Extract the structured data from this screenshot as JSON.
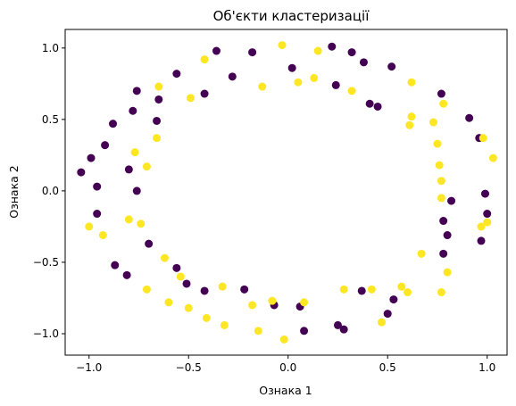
{
  "chart_data": {
    "type": "scatter",
    "title": "Об'єкти кластеризації",
    "xlabel": "Ознака 1",
    "ylabel": "Ознака 2",
    "xlim": [
      -1.12,
      1.1
    ],
    "ylim": [
      -1.15,
      1.13
    ],
    "xticks": [
      -1.0,
      -0.5,
      0.0,
      0.5,
      1.0
    ],
    "xtick_labels": [
      "−1.0",
      "−0.5",
      "0.0",
      "0.5",
      "1.0"
    ],
    "yticks": [
      -1.0,
      -0.5,
      0.0,
      0.5,
      1.0
    ],
    "ytick_labels": [
      "−1.0",
      "−0.5",
      "0.0",
      "0.5",
      "1.0"
    ],
    "grid": false,
    "colors": {
      "cluster_0": "#440154",
      "cluster_1": "#fde725"
    },
    "series": [
      {
        "color": "#440154",
        "points": [
          [
            -1.04,
            0.13
          ],
          [
            -0.99,
            0.23
          ],
          [
            -0.96,
            0.03
          ],
          [
            -0.96,
            -0.16
          ],
          [
            -0.92,
            0.32
          ],
          [
            -0.88,
            0.47
          ],
          [
            -0.81,
            -0.59
          ],
          [
            -0.87,
            -0.52
          ],
          [
            -0.78,
            0.56
          ],
          [
            -0.76,
            0.7
          ],
          [
            -0.8,
            0.15
          ],
          [
            -0.76,
            0.0
          ],
          [
            -0.7,
            -0.37
          ],
          [
            -0.66,
            0.49
          ],
          [
            -0.65,
            0.64
          ],
          [
            -0.56,
            0.82
          ],
          [
            -0.56,
            -0.54
          ],
          [
            -0.51,
            -0.65
          ],
          [
            -0.42,
            0.68
          ],
          [
            -0.42,
            -0.7
          ],
          [
            -0.36,
            0.98
          ],
          [
            -0.28,
            0.8
          ],
          [
            -0.22,
            -0.69
          ],
          [
            -0.18,
            0.97
          ],
          [
            -0.07,
            -0.8
          ],
          [
            0.02,
            0.86
          ],
          [
            0.06,
            -0.81
          ],
          [
            0.08,
            -0.98
          ],
          [
            0.22,
            1.01
          ],
          [
            0.24,
            0.74
          ],
          [
            0.25,
            -0.94
          ],
          [
            0.28,
            -0.97
          ],
          [
            0.32,
            0.97
          ],
          [
            0.37,
            -0.7
          ],
          [
            0.41,
            0.61
          ],
          [
            0.38,
            0.9
          ],
          [
            0.45,
            0.59
          ],
          [
            0.52,
            0.87
          ],
          [
            0.5,
            -0.86
          ],
          [
            0.53,
            -0.76
          ],
          [
            0.78,
            -0.44
          ],
          [
            0.8,
            -0.31
          ],
          [
            0.82,
            -0.07
          ],
          [
            0.78,
            -0.21
          ],
          [
            0.77,
            0.68
          ],
          [
            0.91,
            0.51
          ],
          [
            0.96,
            0.37
          ],
          [
            0.99,
            -0.02
          ],
          [
            1.0,
            -0.16
          ],
          [
            0.97,
            -0.35
          ]
        ]
      },
      {
        "color": "#fde725",
        "points": [
          [
            -1.0,
            -0.25
          ],
          [
            -0.93,
            -0.31
          ],
          [
            -0.8,
            -0.2
          ],
          [
            -0.77,
            0.27
          ],
          [
            -0.71,
            0.17
          ],
          [
            -0.74,
            -0.23
          ],
          [
            -0.66,
            0.37
          ],
          [
            -0.65,
            0.73
          ],
          [
            -0.71,
            -0.69
          ],
          [
            -0.62,
            -0.47
          ],
          [
            -0.6,
            -0.78
          ],
          [
            -0.54,
            -0.6
          ],
          [
            -0.5,
            -0.82
          ],
          [
            -0.49,
            0.65
          ],
          [
            -0.42,
            0.92
          ],
          [
            -0.41,
            -0.89
          ],
          [
            -0.33,
            -0.67
          ],
          [
            -0.32,
            -0.94
          ],
          [
            -0.18,
            -0.8
          ],
          [
            -0.15,
            -0.98
          ],
          [
            -0.13,
            0.73
          ],
          [
            -0.08,
            -0.77
          ],
          [
            -0.03,
            1.02
          ],
          [
            -0.02,
            -1.04
          ],
          [
            0.05,
            0.76
          ],
          [
            0.08,
            -0.78
          ],
          [
            0.13,
            0.79
          ],
          [
            0.15,
            0.98
          ],
          [
            0.28,
            -0.69
          ],
          [
            0.32,
            0.7
          ],
          [
            0.42,
            -0.69
          ],
          [
            0.47,
            -0.92
          ],
          [
            0.57,
            -0.67
          ],
          [
            0.6,
            -0.71
          ],
          [
            0.62,
            0.76
          ],
          [
            0.61,
            0.46
          ],
          [
            0.62,
            0.52
          ],
          [
            0.67,
            -0.44
          ],
          [
            0.73,
            0.48
          ],
          [
            0.75,
            0.33
          ],
          [
            0.76,
            0.18
          ],
          [
            0.77,
            0.07
          ],
          [
            0.78,
            0.61
          ],
          [
            0.77,
            -0.05
          ],
          [
            0.8,
            -0.57
          ],
          [
            0.77,
            -0.71
          ],
          [
            0.98,
            0.37
          ],
          [
            1.0,
            -0.22
          ],
          [
            1.03,
            0.23
          ],
          [
            0.97,
            -0.25
          ]
        ]
      }
    ]
  }
}
